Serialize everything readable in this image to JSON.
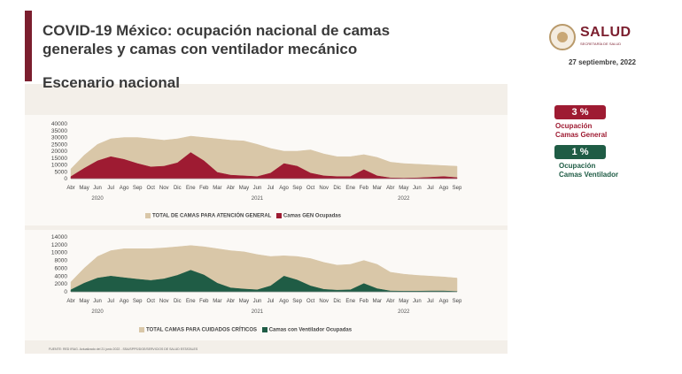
{
  "header": {
    "title": "COVID-19 México: ocupación nacional de camas generales y camas con ventilador mecánico",
    "subtitle": "Escenario nacional",
    "date": "27 septiembre, 2022"
  },
  "logo": {
    "text": "SALUD",
    "subtext": "SECRETARÍA DE SALUD"
  },
  "indicators": {
    "general": {
      "value": "3 %",
      "label_line1": "Ocupación",
      "label_line2": "Camas General",
      "color": "#9e1b32"
    },
    "ventilator": {
      "value": "1 %",
      "label_line1": "Ocupación",
      "label_line2": "Camas Ventilador",
      "color": "#1f5c45"
    }
  },
  "legend": {
    "top_total": "TOTAL DE CAMAS PARA ATENCIÓN GENERAL",
    "top_occupied": "Camas GEN Ocupadas",
    "bottom_total": "TOTAL CAMAS PARA CUIDADOS CRÍTICOS",
    "bottom_occupied": "Camas con Ventilador Ocupadas"
  },
  "source": "FUENTE: RED IRAG. Actualizado del 21 junio 2022 - SSA/SPPS/DGE/SERVICIOS DE SALUD ESTATALES",
  "chart_data": [
    {
      "type": "area",
      "title": "",
      "months": [
        "Abr",
        "May",
        "Jun",
        "Jul",
        "Ago",
        "Sep",
        "Oct",
        "Nov",
        "Dic",
        "Ene",
        "Feb",
        "Mar",
        "Abr",
        "May",
        "Jun",
        "Jul",
        "Ago",
        "Sep",
        "Oct",
        "Nov",
        "Dic",
        "Ene",
        "Feb",
        "Mar",
        "Abr",
        "May",
        "Jun",
        "Jul",
        "Ago",
        "Sep"
      ],
      "years": [
        "2020",
        "2021",
        "2022"
      ],
      "yticks": [
        "0",
        "5000",
        "10000",
        "15000",
        "20000",
        "25000",
        "30000",
        "35000",
        "40000"
      ],
      "ylim": [
        0,
        40000
      ],
      "series": [
        {
          "name": "TOTAL DE CAMAS PARA ATENCIÓN GENERAL",
          "color": "#d9c7a8",
          "values": [
            7000,
            17000,
            25000,
            29000,
            30000,
            30000,
            29000,
            28000,
            29000,
            31000,
            30000,
            29000,
            28000,
            27500,
            25000,
            22000,
            20000,
            20000,
            21000,
            18000,
            16000,
            16000,
            17500,
            15500,
            12000,
            11000,
            10500,
            10000,
            9500,
            9000
          ]
        },
        {
          "name": "Camas GEN Ocupadas",
          "color": "#9e1b32",
          "values": [
            1500,
            7500,
            13000,
            16000,
            14000,
            11000,
            8500,
            9000,
            11500,
            19000,
            13000,
            4500,
            2500,
            2000,
            1500,
            4000,
            11000,
            9000,
            4000,
            2000,
            1500,
            1500,
            6500,
            2000,
            500,
            300,
            500,
            1000,
            1500,
            700
          ]
        }
      ]
    },
    {
      "type": "area",
      "title": "",
      "months": [
        "Abr",
        "May",
        "Jun",
        "Jul",
        "Ago",
        "Sep",
        "Oct",
        "Nov",
        "Dic",
        "Ene",
        "Feb",
        "Mar",
        "Abr",
        "May",
        "Jun",
        "Jul",
        "Ago",
        "Sep",
        "Oct",
        "Nov",
        "Dic",
        "Ene",
        "Feb",
        "Mar",
        "Abr",
        "May",
        "Jun",
        "Jul",
        "Ago",
        "Sep"
      ],
      "years": [
        "2020",
        "2021",
        "2022"
      ],
      "yticks": [
        "0",
        "2000",
        "4000",
        "6000",
        "8000",
        "10000",
        "12000",
        "14000"
      ],
      "ylim": [
        0,
        14000
      ],
      "series": [
        {
          "name": "TOTAL CAMAS PARA CUIDADOS CRÍTICOS",
          "color": "#d9c7a8",
          "values": [
            2500,
            6000,
            9000,
            10500,
            11000,
            11000,
            11000,
            11200,
            11500,
            11800,
            11500,
            11000,
            10500,
            10200,
            9500,
            9000,
            9200,
            9000,
            8500,
            7500,
            6800,
            7000,
            8000,
            7000,
            5000,
            4500,
            4200,
            4000,
            3800,
            3500
          ]
        },
        {
          "name": "Camas con Ventilador Ocupadas",
          "color": "#1f5c45",
          "values": [
            500,
            2200,
            3500,
            4000,
            3600,
            3200,
            2900,
            3300,
            4200,
            5500,
            4300,
            2200,
            1000,
            700,
            500,
            1500,
            4000,
            3000,
            1500,
            600,
            400,
            500,
            2100,
            800,
            200,
            150,
            150,
            200,
            200,
            100
          ]
        }
      ]
    }
  ]
}
